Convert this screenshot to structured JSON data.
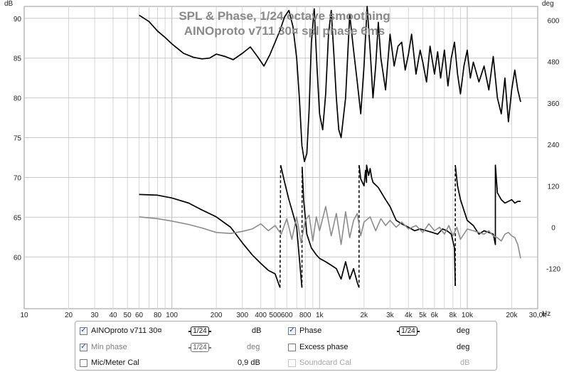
{
  "title": {
    "line1": "SPL & Phase, 1/24 octave smoothing",
    "line2": "AINOproto v711 30¤ spl phase 6ms"
  },
  "chart_data": {
    "type": "line",
    "x_scale": "log",
    "xlim": [
      10,
      30000
    ],
    "ylim_left": [
      53.5,
      91.5
    ],
    "ylim_right": [
      -236,
      640
    ],
    "left_unit": "dB",
    "right_unit": "deg",
    "x_ticks": [
      {
        "v": 10,
        "label": "10"
      },
      {
        "v": 20,
        "label": "20"
      },
      {
        "v": 30,
        "label": "30"
      },
      {
        "v": 40,
        "label": "40"
      },
      {
        "v": 50,
        "label": "50"
      },
      {
        "v": 60,
        "label": "60"
      },
      {
        "v": 80,
        "label": "80"
      },
      {
        "v": 100,
        "label": "100"
      },
      {
        "v": 200,
        "label": "200"
      },
      {
        "v": 300,
        "label": "300"
      },
      {
        "v": 400,
        "label": "400"
      },
      {
        "v": 500,
        "label": "500"
      },
      {
        "v": 600,
        "label": "600"
      },
      {
        "v": 800,
        "label": "800"
      },
      {
        "v": 1000,
        "label": "1k"
      },
      {
        "v": 2000,
        "label": "2k"
      },
      {
        "v": 3000,
        "label": "3k"
      },
      {
        "v": 4000,
        "label": "4k"
      },
      {
        "v": 5000,
        "label": "5k"
      },
      {
        "v": 6000,
        "label": "6k"
      },
      {
        "v": 8000,
        "label": "8k"
      },
      {
        "v": 10000,
        "label": "10k"
      },
      {
        "v": 20000,
        "label": "20k"
      },
      {
        "v": 30000,
        "label": "30,0k"
      }
    ],
    "x_unit_label": "Hz",
    "y_left_ticks": [
      60,
      65,
      70,
      75,
      80,
      85,
      90
    ],
    "y_right_ticks": [
      -120,
      0,
      120,
      240,
      360,
      480,
      600
    ],
    "grid": true,
    "series": [
      {
        "name": "AINOproto v711 30¤",
        "axis": "left",
        "color": "#000000",
        "x": [
          60,
          70,
          80,
          90,
          100,
          120,
          140,
          160,
          180,
          200,
          230,
          260,
          300,
          340,
          380,
          420,
          460,
          500,
          540,
          580,
          620,
          660,
          700,
          730,
          760,
          790,
          820,
          850,
          880,
          920,
          960,
          1000,
          1050,
          1100,
          1150,
          1200,
          1250,
          1300,
          1350,
          1400,
          1500,
          1600,
          1700,
          1800,
          1900,
          2000,
          2100,
          2200,
          2300,
          2400,
          2500,
          2600,
          2800,
          3000,
          3200,
          3400,
          3600,
          3800,
          4000,
          4200,
          4500,
          4800,
          5000,
          5300,
          5600,
          6000,
          6300,
          6600,
          7000,
          7400,
          7800,
          8200,
          8600,
          9000,
          9500,
          10000,
          10500,
          11000,
          12000,
          13000,
          14000,
          15000,
          16000,
          17000,
          18000,
          19000,
          20000,
          21000,
          22000,
          23000
        ],
        "y": [
          90.4,
          89.6,
          88.4,
          87.6,
          86.8,
          85.6,
          85.1,
          84.9,
          85.0,
          85.5,
          85.2,
          84.8,
          85.6,
          86.4,
          85.2,
          84.0,
          85.4,
          87.0,
          88.5,
          90.2,
          91.0,
          89.0,
          85.0,
          80.0,
          74.0,
          72.0,
          73.0,
          78.5,
          87.0,
          91.2,
          84.0,
          78.0,
          76.0,
          80.5,
          88.0,
          91.0,
          85.5,
          80.0,
          76.0,
          75.0,
          80.0,
          90.5,
          86.0,
          82.0,
          78.0,
          84.0,
          91.5,
          86.0,
          80.0,
          84.0,
          89.5,
          85.0,
          81.0,
          88.0,
          84.0,
          86.5,
          87.0,
          83.5,
          85.5,
          88.0,
          83.0,
          86.0,
          84.5,
          82.0,
          86.5,
          83.0,
          85.8,
          82.5,
          86.0,
          81.5,
          85.0,
          87.0,
          83.0,
          80.5,
          84.0,
          86.0,
          82.5,
          84.5,
          82.0,
          84.0,
          81.0,
          85.2,
          80.0,
          78.0,
          82.5,
          77.0,
          81.0,
          83.5,
          81.0,
          79.5
        ]
      },
      {
        "name": "Phase",
        "axis": "right",
        "color": "#000000",
        "x": [
          60,
          80,
          100,
          130,
          160,
          200,
          250,
          300,
          350,
          400,
          450,
          500,
          540,
          545,
          580,
          620,
          660,
          700,
          730,
          760,
          762,
          780,
          820,
          880,
          950,
          1000,
          1100,
          1200,
          1300,
          1400,
          1500,
          1600,
          1700,
          1800,
          1850,
          1852,
          1900,
          2000,
          2050,
          2080,
          2082,
          2150,
          2200,
          2250,
          2300,
          2500,
          2800,
          3000,
          3300,
          3600,
          4000,
          4400,
          4800,
          5300,
          5800,
          6300,
          6800,
          7300,
          7800,
          8200,
          8300,
          8302,
          8600,
          9000,
          10000,
          11000,
          12000,
          13000,
          14000,
          15000,
          15500,
          15502,
          16000,
          17000,
          18000,
          19000,
          20000,
          21000,
          22000,
          23000
        ],
        "y": [
          95,
          93,
          85,
          70,
          50,
          30,
          0,
          -45,
          -80,
          -105,
          -125,
          -135,
          -175,
          180,
          130,
          80,
          40,
          0,
          -90,
          -175,
          175,
          80,
          -20,
          -60,
          -80,
          -90,
          -100,
          -110,
          -120,
          -150,
          -100,
          -150,
          -120,
          -160,
          -175,
          180,
          140,
          120,
          165,
          130,
          180,
          150,
          170,
          145,
          130,
          115,
          80,
          60,
          20,
          10,
          0,
          -10,
          -5,
          -10,
          -15,
          -20,
          -5,
          -10,
          -20,
          -60,
          -170,
          180,
          120,
          80,
          20,
          5,
          -20,
          -10,
          -15,
          -20,
          -50,
          180,
          100,
          80,
          70,
          75,
          80,
          70,
          75,
          75
        ]
      },
      {
        "name": "Min phase",
        "axis": "right",
        "color": "#8c8c8c",
        "x": [
          60,
          80,
          100,
          130,
          160,
          200,
          250,
          300,
          350,
          400,
          450,
          500,
          550,
          600,
          650,
          700,
          750,
          800,
          850,
          900,
          950,
          1000,
          1100,
          1200,
          1300,
          1400,
          1500,
          1600,
          1700,
          1800,
          1900,
          2000,
          2200,
          2400,
          2600,
          2800,
          3000,
          3300,
          3600,
          4000,
          4500,
          5000,
          5500,
          6000,
          6500,
          7000,
          7500,
          8000,
          8500,
          9000,
          10000,
          11000,
          12000,
          13000,
          14000,
          15000,
          16000,
          17000,
          18000,
          19000,
          20000,
          21000,
          22000,
          23000
        ],
        "y": [
          30,
          25,
          18,
          8,
          -2,
          -15,
          -18,
          -12,
          -5,
          10,
          -10,
          5,
          -20,
          25,
          -35,
          30,
          -45,
          20,
          35,
          -40,
          30,
          -10,
          60,
          -25,
          40,
          -50,
          45,
          -30,
          20,
          40,
          -25,
          15,
          30,
          -10,
          25,
          5,
          20,
          0,
          15,
          -5,
          5,
          -15,
          10,
          -10,
          0,
          -20,
          5,
          -25,
          0,
          -35,
          -5,
          -10,
          -15,
          -20,
          -10,
          -25,
          -30,
          -40,
          -20,
          -15,
          -25,
          -30,
          -50,
          -90
        ]
      }
    ]
  },
  "legend": {
    "row1": {
      "spl": {
        "checked": true,
        "label": "AINOproto v711 30¤",
        "smoothing": "1/24",
        "unit": "dB"
      },
      "phase": {
        "checked": true,
        "label": "Phase",
        "smoothing": "1/24",
        "unit": "deg"
      }
    },
    "row2": {
      "min_phase": {
        "checked": true,
        "label": "Min phase",
        "smoothing": "1/24",
        "unit": "deg"
      },
      "excess_phase": {
        "checked": false,
        "label": "Excess phase",
        "unit": "deg"
      }
    },
    "row3": {
      "mic_cal": {
        "checked": false,
        "label": "Mic/Meter Cal",
        "value": "0,9 dB"
      },
      "soundcard_cal": {
        "checked": false,
        "label": "Soundcard Cal",
        "unit": "dB"
      }
    }
  }
}
